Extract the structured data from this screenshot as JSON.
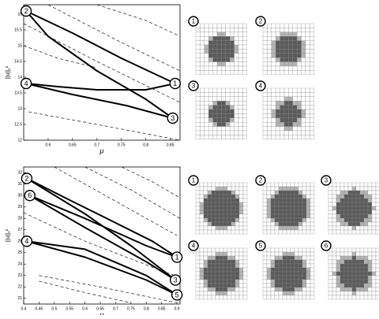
{
  "chart_data": [
    {
      "type": "line",
      "x_label": "μ",
      "y_label": "||u||₂²",
      "xlim": [
        0.55,
        0.87
      ],
      "ylim": [
        12,
        16.3
      ],
      "xticks": [
        0.6,
        0.65,
        0.7,
        0.75,
        0.8,
        0.85
      ],
      "yticks": [
        12,
        12.5,
        13,
        13.5,
        14,
        14.5,
        15,
        15.5,
        16
      ],
      "series": [
        {
          "color": "#000000",
          "line_style": "solid",
          "x": [
            0.555,
            0.65,
            0.75,
            0.86,
            0.8,
            0.7,
            0.62,
            0.555,
            0.65,
            0.76,
            0.855,
            0.8,
            0.7,
            0.6,
            0.555
          ],
          "y": [
            16.1,
            15.4,
            14.6,
            13.8,
            13.6,
            13.6,
            13.7,
            13.8,
            13.45,
            13.1,
            12.7,
            13.3,
            14.2,
            15.3,
            16.1
          ]
        },
        {
          "color": "#333333",
          "line_style": "dashed",
          "x": [
            0.6,
            0.75,
            0.87
          ],
          "y": [
            16.3,
            15.1,
            14.2
          ]
        },
        {
          "color": "#333333",
          "line_style": "dashed",
          "x": [
            0.55,
            0.7,
            0.87
          ],
          "y": [
            15.7,
            14.5,
            13.2
          ]
        },
        {
          "color": "#333333",
          "line_style": "dashed",
          "x": [
            0.7,
            0.8,
            0.87
          ],
          "y": [
            16.3,
            15.8,
            15.3
          ]
        },
        {
          "color": "#333333",
          "line_style": "dashed",
          "x": [
            0.56,
            0.7,
            0.87
          ],
          "y": [
            12.9,
            12.5,
            12.0
          ]
        },
        {
          "color": "#333333",
          "line_style": "dashed",
          "x": [
            0.55,
            0.62,
            0.7
          ],
          "y": [
            15.0,
            14.6,
            14.3
          ]
        }
      ],
      "point_labels": [
        {
          "label": "1",
          "x": 0.86,
          "y": 13.8
        },
        {
          "label": "2",
          "x": 0.555,
          "y": 16.1
        },
        {
          "label": "3",
          "x": 0.855,
          "y": 12.7
        },
        {
          "label": "4",
          "x": 0.555,
          "y": 13.8
        }
      ]
    },
    {
      "type": "line",
      "x_label": "μ",
      "y_label": "||u||₂²",
      "xlim": [
        0.4,
        0.91
      ],
      "ylim": [
        20.5,
        32.5
      ],
      "xticks": [
        0.4,
        0.45,
        0.5,
        0.55,
        0.6,
        0.65,
        0.7,
        0.75,
        0.8,
        0.85,
        0.9
      ],
      "yticks": [
        21,
        22,
        23,
        24,
        25,
        26,
        27,
        28,
        29,
        30,
        31,
        32
      ],
      "series": [
        {
          "color": "#000000",
          "line_style": "solid",
          "x": [
            0.41,
            0.55,
            0.7,
            0.82,
            0.9,
            0.8,
            0.6,
            0.42
          ],
          "y": [
            31.5,
            29.6,
            27.6,
            26.0,
            24.6,
            25.6,
            28.0,
            30.0
          ]
        },
        {
          "color": "#000000",
          "line_style": "solid",
          "x": [
            0.41,
            0.6,
            0.75,
            0.895,
            0.8,
            0.6,
            0.42
          ],
          "y": [
            31.5,
            28.4,
            25.6,
            22.6,
            24.2,
            27.2,
            30.0
          ]
        },
        {
          "color": "#000000",
          "line_style": "solid",
          "x": [
            0.41,
            0.6,
            0.8,
            0.9,
            0.8,
            0.6,
            0.41
          ],
          "y": [
            26.0,
            24.6,
            22.6,
            21.3,
            23.0,
            25.3,
            26.0
          ]
        },
        {
          "color": "#333333",
          "line_style": "dashed",
          "x": [
            0.5,
            0.7,
            0.9
          ],
          "y": [
            32.5,
            29.5,
            26.5
          ]
        },
        {
          "color": "#333333",
          "line_style": "dashed",
          "x": [
            0.6,
            0.75,
            0.91
          ],
          "y": [
            32.5,
            30.5,
            28.0
          ]
        },
        {
          "color": "#333333",
          "line_style": "dashed",
          "x": [
            0.72,
            0.82,
            0.91
          ],
          "y": [
            32.5,
            31.2,
            29.8
          ]
        },
        {
          "color": "#333333",
          "line_style": "dashed",
          "x": [
            0.4,
            0.6,
            0.91
          ],
          "y": [
            28.5,
            26.0,
            22.8
          ]
        },
        {
          "color": "#333333",
          "line_style": "dashed",
          "x": [
            0.45,
            0.65,
            0.9
          ],
          "y": [
            23.0,
            22.0,
            20.6
          ]
        },
        {
          "color": "#333333",
          "line_style": "dashed",
          "x": [
            0.45,
            0.6,
            0.75
          ],
          "y": [
            22.5,
            21.5,
            20.6
          ]
        }
      ],
      "point_labels": [
        {
          "label": "1",
          "x": 0.9,
          "y": 24.6
        },
        {
          "label": "2",
          "x": 0.41,
          "y": 31.5
        },
        {
          "label": "3",
          "x": 0.895,
          "y": 22.6
        },
        {
          "label": "4",
          "x": 0.41,
          "y": 26.0
        },
        {
          "label": "5",
          "x": 0.9,
          "y": 21.3
        },
        {
          "label": "6",
          "x": 0.42,
          "y": 30.0
        }
      ]
    }
  ],
  "patterns": {
    "top": [
      "1",
      "2",
      "3",
      "4"
    ],
    "bottom": [
      "1",
      "2",
      "3",
      "4",
      "5",
      "6"
    ]
  }
}
